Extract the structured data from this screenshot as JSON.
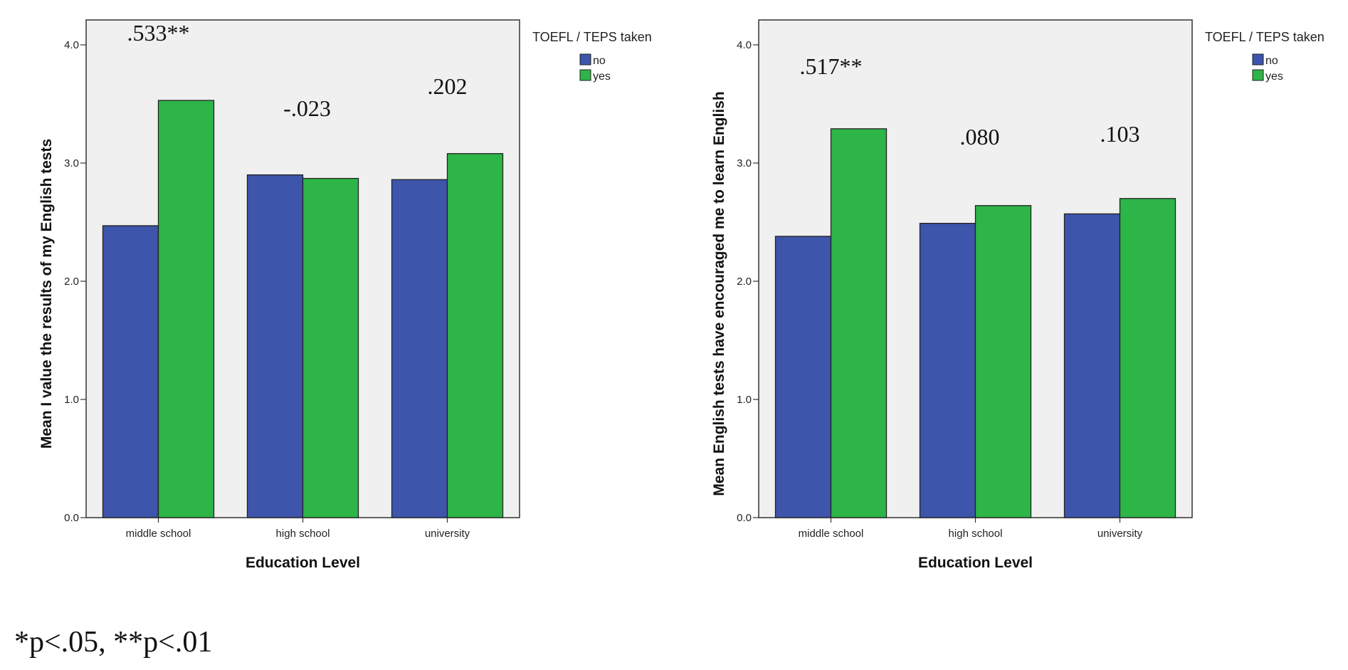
{
  "colors": {
    "no": "#3d55aa",
    "yes": "#2db548",
    "plot_bg": "#f0f0f0",
    "frame": "#333333"
  },
  "chart_data": [
    {
      "type": "bar",
      "categories": [
        "middle school",
        "high school",
        "university"
      ],
      "series": [
        {
          "name": "no",
          "values": [
            2.47,
            2.9,
            2.86
          ]
        },
        {
          "name": "yes",
          "values": [
            3.53,
            2.87,
            3.08
          ]
        }
      ],
      "annotations": [
        ".533**",
        "-.023",
        ".202"
      ],
      "xlabel": "Education Level",
      "ylabel": "Mean I value the results of my English tests",
      "ylim": [
        0,
        4
      ],
      "yticks": [
        "0.0",
        "1.0",
        "2.0",
        "3.0",
        "4.0"
      ],
      "legend_title": "TOEFL / TEPS taken",
      "legend_position": "right",
      "grid": false
    },
    {
      "type": "bar",
      "categories": [
        "middle school",
        "high school",
        "university"
      ],
      "series": [
        {
          "name": "no",
          "values": [
            2.38,
            2.49,
            2.57
          ]
        },
        {
          "name": "yes",
          "values": [
            3.29,
            2.64,
            2.7
          ]
        }
      ],
      "annotations": [
        ".517**",
        ".080",
        ".103"
      ],
      "xlabel": "Education Level",
      "ylabel": "Mean English tests have encouraged me to learn English",
      "ylim": [
        0,
        4
      ],
      "yticks": [
        "0.0",
        "1.0",
        "2.0",
        "3.0",
        "4.0"
      ],
      "legend_title": "TOEFL / TEPS taken",
      "legend_position": "right",
      "grid": false
    }
  ],
  "footnote": "*p<.05, **p<.01"
}
